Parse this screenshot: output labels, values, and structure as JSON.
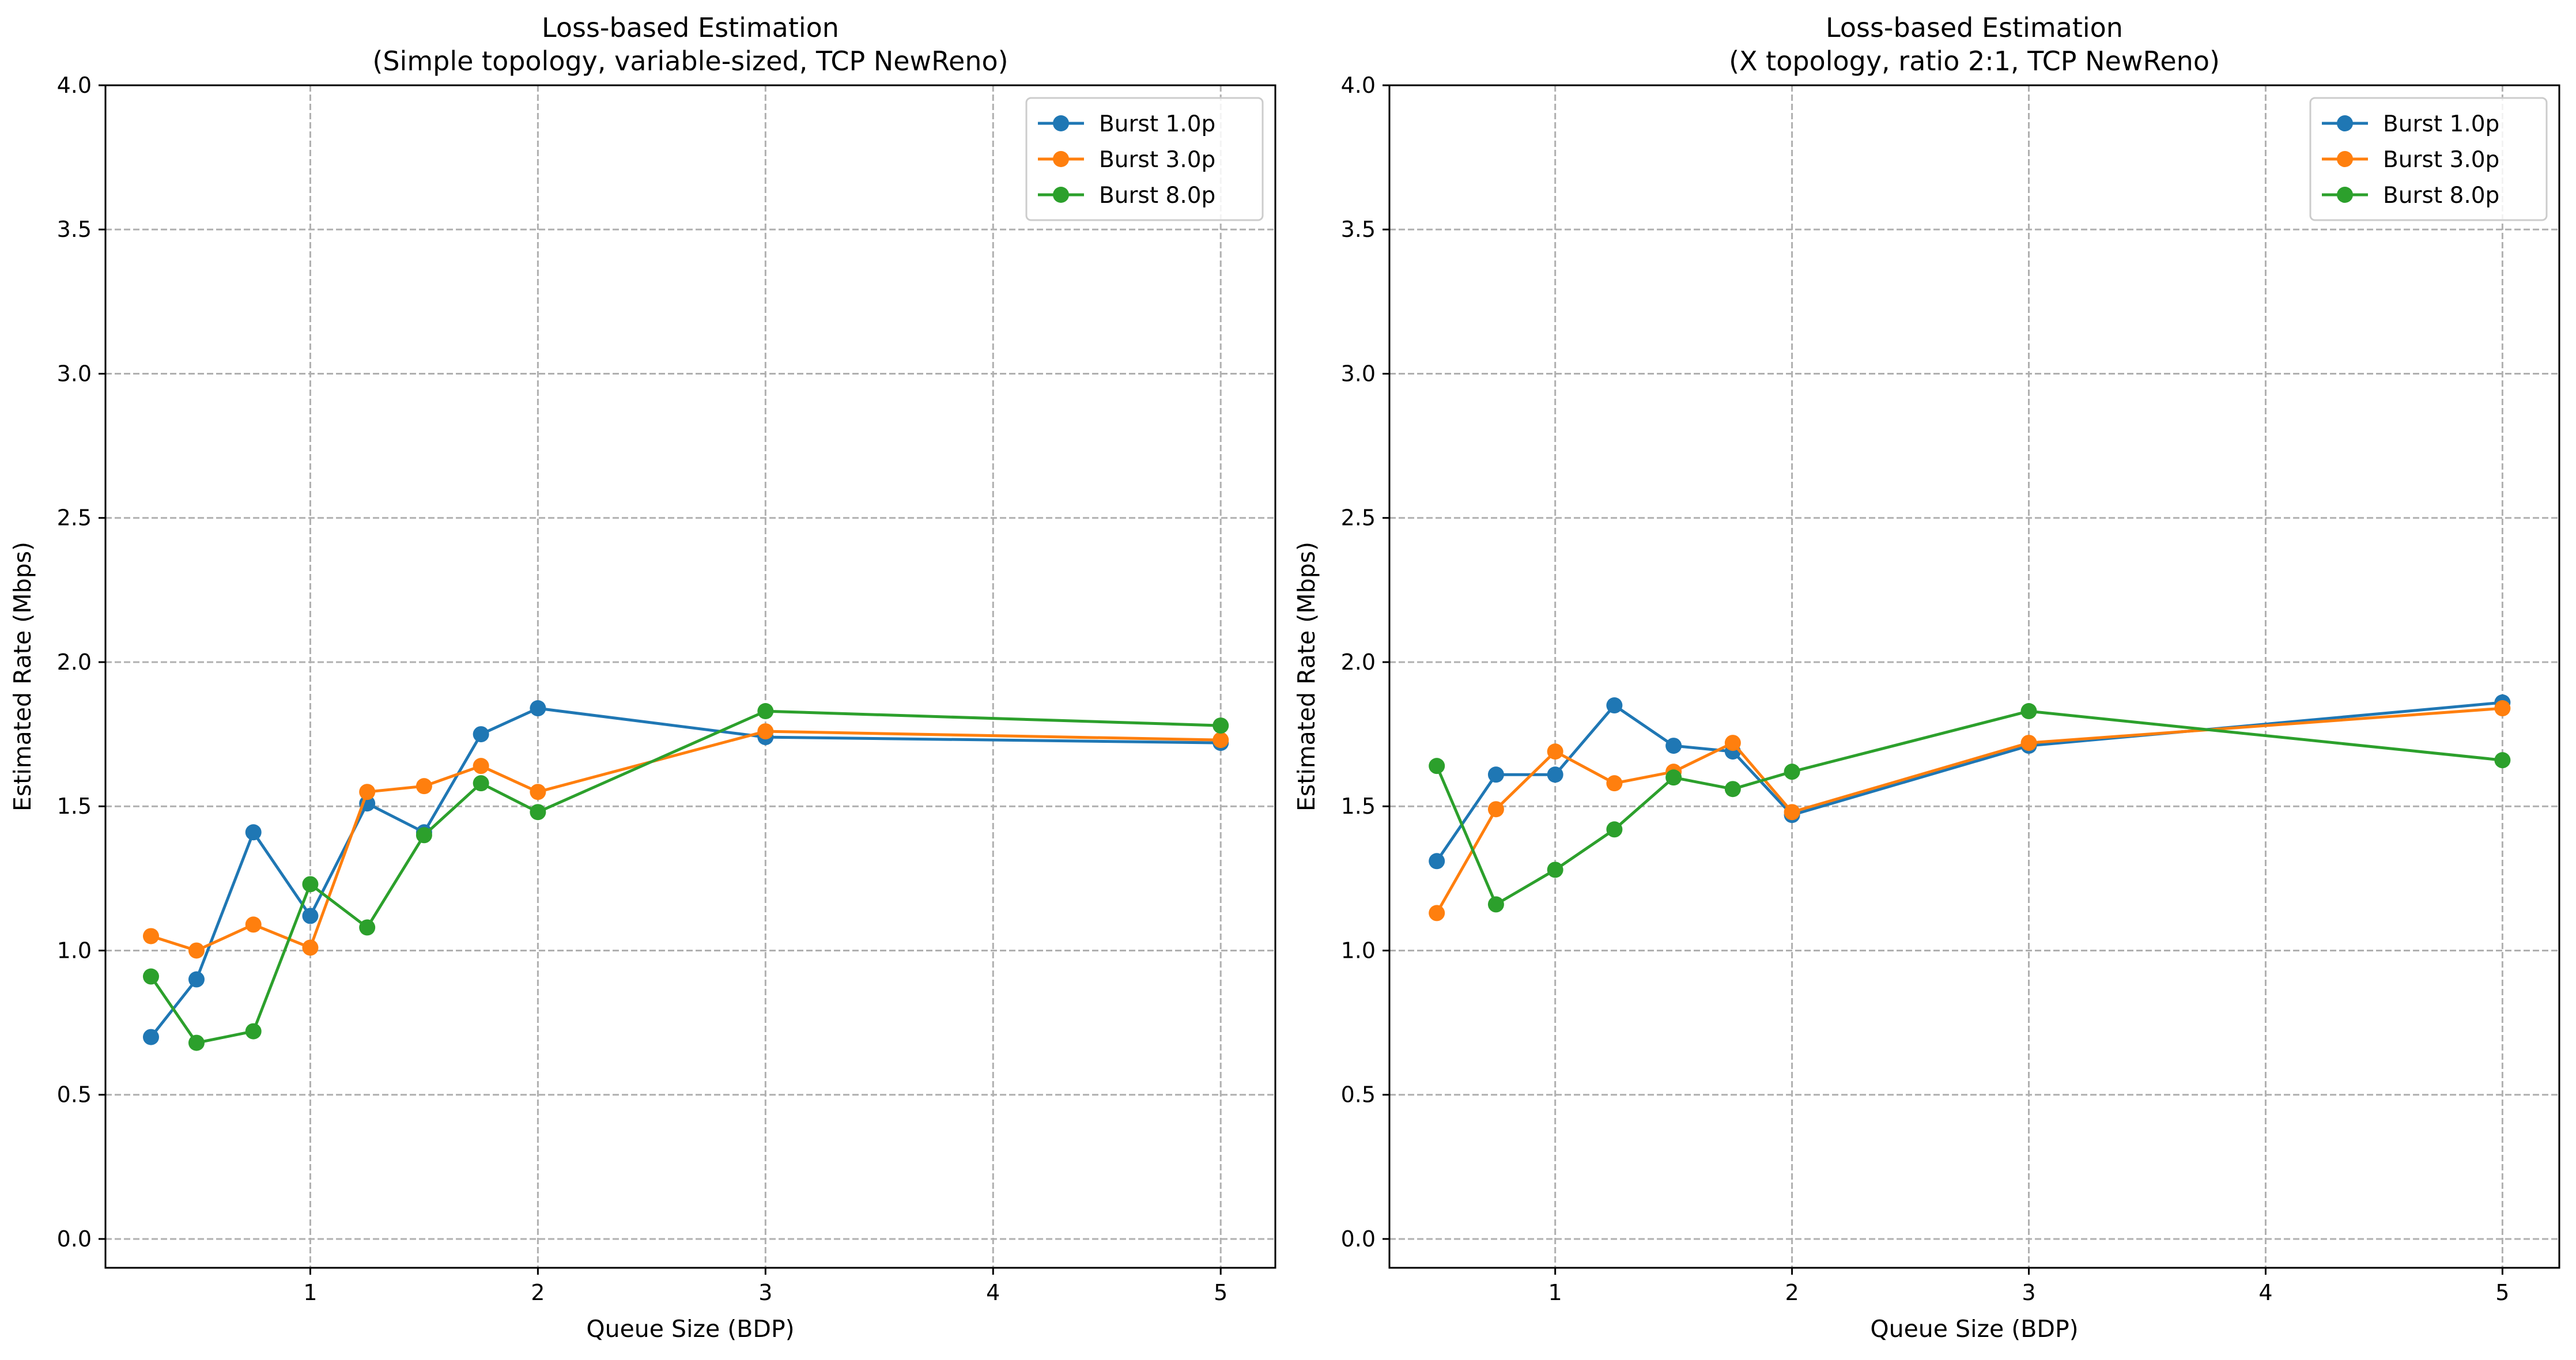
{
  "chart_data": [
    {
      "type": "line",
      "title": "Loss-based Estimation\n(Simple topology, variable-sized, TCP NewReno)",
      "xlabel": "Queue Size (BDP)",
      "ylabel": "Estimated Rate (Mbps)",
      "xlim": [
        0.1,
        5.24
      ],
      "ylim": [
        -0.1,
        4.0
      ],
      "xticks": [
        1,
        2,
        3,
        4,
        5
      ],
      "yticks": [
        0.0,
        0.5,
        1.0,
        1.5,
        2.0,
        2.5,
        3.0,
        3.5,
        4.0
      ],
      "grid": true,
      "legend": "top-right",
      "series": [
        {
          "name": "Burst 1.0p",
          "color": "#1f77b4",
          "x": [
            0.3,
            0.5,
            0.75,
            1.0,
            1.25,
            1.5,
            1.75,
            2.0,
            3.0,
            5.0
          ],
          "y": [
            0.7,
            0.9,
            1.41,
            1.12,
            1.51,
            1.41,
            1.75,
            1.84,
            1.74,
            1.72
          ]
        },
        {
          "name": "Burst 3.0p",
          "color": "#ff7f0e",
          "x": [
            0.3,
            0.5,
            0.75,
            1.0,
            1.25,
            1.5,
            1.75,
            2.0,
            3.0,
            5.0
          ],
          "y": [
            1.05,
            1.0,
            1.09,
            1.01,
            1.55,
            1.57,
            1.64,
            1.55,
            1.76,
            1.73
          ]
        },
        {
          "name": "Burst 8.0p",
          "color": "#2ca02c",
          "x": [
            0.3,
            0.5,
            0.75,
            1.0,
            1.25,
            1.5,
            1.75,
            2.0,
            3.0,
            5.0
          ],
          "y": [
            0.91,
            0.68,
            0.72,
            1.23,
            1.08,
            1.4,
            1.58,
            1.48,
            1.83,
            1.78
          ]
        }
      ]
    },
    {
      "type": "line",
      "title": "Loss-based Estimation\n(X topology, ratio 2:1, TCP NewReno)",
      "xlabel": "Queue Size (BDP)",
      "ylabel": "Estimated Rate (Mbps)",
      "xlim": [
        0.3,
        5.24
      ],
      "ylim": [
        -0.1,
        4.0
      ],
      "xticks": [
        1,
        2,
        3,
        4,
        5
      ],
      "yticks": [
        0.0,
        0.5,
        1.0,
        1.5,
        2.0,
        2.5,
        3.0,
        3.5,
        4.0
      ],
      "grid": true,
      "legend": "top-right",
      "series": [
        {
          "name": "Burst 1.0p",
          "color": "#1f77b4",
          "x": [
            0.5,
            0.75,
            1.0,
            1.25,
            1.5,
            1.75,
            2.0,
            3.0,
            5.0
          ],
          "y": [
            1.31,
            1.61,
            1.61,
            1.85,
            1.71,
            1.69,
            1.47,
            1.71,
            1.86
          ]
        },
        {
          "name": "Burst 3.0p",
          "color": "#ff7f0e",
          "x": [
            0.5,
            0.75,
            1.0,
            1.25,
            1.5,
            1.75,
            2.0,
            3.0,
            5.0
          ],
          "y": [
            1.13,
            1.49,
            1.69,
            1.58,
            1.62,
            1.72,
            1.48,
            1.72,
            1.84
          ]
        },
        {
          "name": "Burst 8.0p",
          "color": "#2ca02c",
          "x": [
            0.5,
            0.75,
            1.0,
            1.25,
            1.5,
            1.75,
            2.0,
            3.0,
            5.0
          ],
          "y": [
            1.64,
            1.16,
            1.28,
            1.42,
            1.6,
            1.56,
            1.62,
            1.83,
            1.66
          ]
        }
      ]
    }
  ]
}
